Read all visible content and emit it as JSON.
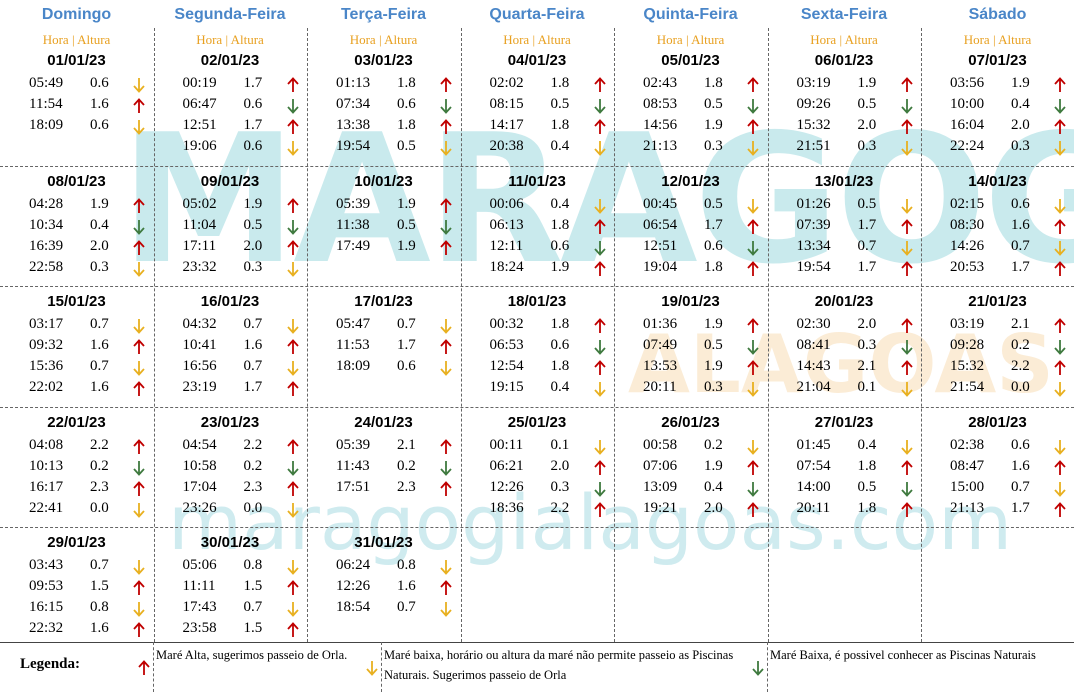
{
  "header": {
    "days": [
      "Domingo",
      "Segunda-Feira",
      "Terça-Feira",
      "Quarta-Feira",
      "Quinta-Feira",
      "Sexta-Feira",
      "Sábado"
    ],
    "subheader": "Hora | Altura"
  },
  "watermark": {
    "logo": "MARAGOGI",
    "region": "ALAGOAS",
    "url": "maragogialagoas.com"
  },
  "weeks": [
    {
      "days": [
        {
          "date": "01/01/23",
          "entries": [
            [
              "05:49",
              "0.6",
              "#e8b020"
            ],
            [
              "11:54",
              "1.6",
              "#c00000"
            ],
            [
              "18:09",
              "0.6",
              "#e8b020"
            ]
          ]
        },
        {
          "date": "02/01/23",
          "entries": [
            [
              "00:19",
              "1.7",
              "#c00000"
            ],
            [
              "06:47",
              "0.6",
              "#3f7a3f"
            ],
            [
              "12:51",
              "1.7",
              "#c00000"
            ],
            [
              "19:06",
              "0.6",
              "#e8b020"
            ]
          ]
        },
        {
          "date": "03/01/23",
          "entries": [
            [
              "01:13",
              "1.8",
              "#c00000"
            ],
            [
              "07:34",
              "0.6",
              "#3f7a3f"
            ],
            [
              "13:38",
              "1.8",
              "#c00000"
            ],
            [
              "19:54",
              "0.5",
              "#e8b020"
            ]
          ]
        },
        {
          "date": "04/01/23",
          "entries": [
            [
              "02:02",
              "1.8",
              "#c00000"
            ],
            [
              "08:15",
              "0.5",
              "#3f7a3f"
            ],
            [
              "14:17",
              "1.8",
              "#c00000"
            ],
            [
              "20:38",
              "0.4",
              "#e8b020"
            ]
          ]
        },
        {
          "date": "05/01/23",
          "entries": [
            [
              "02:43",
              "1.8",
              "#c00000"
            ],
            [
              "08:53",
              "0.5",
              "#3f7a3f"
            ],
            [
              "14:56",
              "1.9",
              "#c00000"
            ],
            [
              "21:13",
              "0.3",
              "#e8b020"
            ]
          ]
        },
        {
          "date": "06/01/23",
          "entries": [
            [
              "03:19",
              "1.9",
              "#c00000"
            ],
            [
              "09:26",
              "0.5",
              "#3f7a3f"
            ],
            [
              "15:32",
              "2.0",
              "#c00000"
            ],
            [
              "21:51",
              "0.3",
              "#e8b020"
            ]
          ]
        },
        {
          "date": "07/01/23",
          "entries": [
            [
              "03:56",
              "1.9",
              "#c00000"
            ],
            [
              "10:00",
              "0.4",
              "#3f7a3f"
            ],
            [
              "16:04",
              "2.0",
              "#c00000"
            ],
            [
              "22:24",
              "0.3",
              "#e8b020"
            ]
          ]
        }
      ]
    },
    {
      "days": [
        {
          "date": "08/01/23",
          "entries": [
            [
              "04:28",
              "1.9",
              "#c00000"
            ],
            [
              "10:34",
              "0.4",
              "#3f7a3f"
            ],
            [
              "16:39",
              "2.0",
              "#c00000"
            ],
            [
              "22:58",
              "0.3",
              "#e8b020"
            ]
          ]
        },
        {
          "date": "09/01/23",
          "entries": [
            [
              "05:02",
              "1.9",
              "#c00000"
            ],
            [
              "11:04",
              "0.5",
              "#3f7a3f"
            ],
            [
              "17:11",
              "2.0",
              "#c00000"
            ],
            [
              "23:32",
              "0.3",
              "#e8b020"
            ]
          ]
        },
        {
          "date": "10/01/23",
          "entries": [
            [
              "05:39",
              "1.9",
              "#c00000"
            ],
            [
              "11:38",
              "0.5",
              "#3f7a3f"
            ],
            [
              "17:49",
              "1.9",
              "#c00000"
            ]
          ]
        },
        {
          "date": "11/01/23",
          "entries": [
            [
              "00:06",
              "0.4",
              "#e8b020"
            ],
            [
              "06:13",
              "1.8",
              "#c00000"
            ],
            [
              "12:11",
              "0.6",
              "#3f7a3f"
            ],
            [
              "18:24",
              "1.9",
              "#c00000"
            ]
          ]
        },
        {
          "date": "12/01/23",
          "entries": [
            [
              "00:45",
              "0.5",
              "#e8b020"
            ],
            [
              "06:54",
              "1.7",
              "#c00000"
            ],
            [
              "12:51",
              "0.6",
              "#3f7a3f"
            ],
            [
              "19:04",
              "1.8",
              "#c00000"
            ]
          ]
        },
        {
          "date": "13/01/23",
          "entries": [
            [
              "01:26",
              "0.5",
              "#e8b020"
            ],
            [
              "07:39",
              "1.7",
              "#c00000"
            ],
            [
              "13:34",
              "0.7",
              "#e8b020"
            ],
            [
              "19:54",
              "1.7",
              "#c00000"
            ]
          ]
        },
        {
          "date": "14/01/23",
          "entries": [
            [
              "02:15",
              "0.6",
              "#e8b020"
            ],
            [
              "08:30",
              "1.6",
              "#c00000"
            ],
            [
              "14:26",
              "0.7",
              "#e8b020"
            ],
            [
              "20:53",
              "1.7",
              "#c00000"
            ]
          ]
        }
      ]
    },
    {
      "days": [
        {
          "date": "15/01/23",
          "entries": [
            [
              "03:17",
              "0.7",
              "#e8b020"
            ],
            [
              "09:32",
              "1.6",
              "#c00000"
            ],
            [
              "15:36",
              "0.7",
              "#e8b020"
            ],
            [
              "22:02",
              "1.6",
              "#c00000"
            ]
          ]
        },
        {
          "date": "16/01/23",
          "entries": [
            [
              "04:32",
              "0.7",
              "#e8b020"
            ],
            [
              "10:41",
              "1.6",
              "#c00000"
            ],
            [
              "16:56",
              "0.7",
              "#e8b020"
            ],
            [
              "23:19",
              "1.7",
              "#c00000"
            ]
          ]
        },
        {
          "date": "17/01/23",
          "entries": [
            [
              "05:47",
              "0.7",
              "#e8b020"
            ],
            [
              "11:53",
              "1.7",
              "#c00000"
            ],
            [
              "18:09",
              "0.6",
              "#e8b020"
            ]
          ]
        },
        {
          "date": "18/01/23",
          "entries": [
            [
              "00:32",
              "1.8",
              "#c00000"
            ],
            [
              "06:53",
              "0.6",
              "#3f7a3f"
            ],
            [
              "12:54",
              "1.8",
              "#c00000"
            ],
            [
              "19:15",
              "0.4",
              "#e8b020"
            ]
          ]
        },
        {
          "date": "19/01/23",
          "entries": [
            [
              "01:36",
              "1.9",
              "#c00000"
            ],
            [
              "07:49",
              "0.5",
              "#3f7a3f"
            ],
            [
              "13:53",
              "1.9",
              "#c00000"
            ],
            [
              "20:11",
              "0.3",
              "#e8b020"
            ]
          ]
        },
        {
          "date": "20/01/23",
          "entries": [
            [
              "02:30",
              "2.0",
              "#c00000"
            ],
            [
              "08:41",
              "0.3",
              "#3f7a3f"
            ],
            [
              "14:43",
              "2.1",
              "#c00000"
            ],
            [
              "21:04",
              "0.1",
              "#e8b020"
            ]
          ]
        },
        {
          "date": "21/01/23",
          "entries": [
            [
              "03:19",
              "2.1",
              "#c00000"
            ],
            [
              "09:28",
              "0.2",
              "#3f7a3f"
            ],
            [
              "15:32",
              "2.2",
              "#c00000"
            ],
            [
              "21:54",
              "0.0",
              "#e8b020"
            ]
          ]
        }
      ]
    },
    {
      "days": [
        {
          "date": "22/01/23",
          "entries": [
            [
              "04:08",
              "2.2",
              "#c00000"
            ],
            [
              "10:13",
              "0.2",
              "#3f7a3f"
            ],
            [
              "16:17",
              "2.3",
              "#c00000"
            ],
            [
              "22:41",
              "0.0",
              "#e8b020"
            ]
          ]
        },
        {
          "date": "23/01/23",
          "entries": [
            [
              "04:54",
              "2.2",
              "#c00000"
            ],
            [
              "10:58",
              "0.2",
              "#3f7a3f"
            ],
            [
              "17:04",
              "2.3",
              "#c00000"
            ],
            [
              "23:26",
              "0.0",
              "#e8b020"
            ]
          ]
        },
        {
          "date": "24/01/23",
          "entries": [
            [
              "05:39",
              "2.1",
              "#c00000"
            ],
            [
              "11:43",
              "0.2",
              "#3f7a3f"
            ],
            [
              "17:51",
              "2.3",
              "#c00000"
            ]
          ]
        },
        {
          "date": "25/01/23",
          "entries": [
            [
              "00:11",
              "0.1",
              "#e8b020"
            ],
            [
              "06:21",
              "2.0",
              "#c00000"
            ],
            [
              "12:26",
              "0.3",
              "#3f7a3f"
            ],
            [
              "18:36",
              "2.2",
              "#c00000"
            ]
          ]
        },
        {
          "date": "26/01/23",
          "entries": [
            [
              "00:58",
              "0.2",
              "#e8b020"
            ],
            [
              "07:06",
              "1.9",
              "#c00000"
            ],
            [
              "13:09",
              "0.4",
              "#3f7a3f"
            ],
            [
              "19:21",
              "2.0",
              "#c00000"
            ]
          ]
        },
        {
          "date": "27/01/23",
          "entries": [
            [
              "01:45",
              "0.4",
              "#e8b020"
            ],
            [
              "07:54",
              "1.8",
              "#c00000"
            ],
            [
              "14:00",
              "0.5",
              "#3f7a3f"
            ],
            [
              "20:11",
              "1.8",
              "#c00000"
            ]
          ]
        },
        {
          "date": "28/01/23",
          "entries": [
            [
              "02:38",
              "0.6",
              "#e8b020"
            ],
            [
              "08:47",
              "1.6",
              "#c00000"
            ],
            [
              "15:00",
              "0.7",
              "#e8b020"
            ],
            [
              "21:13",
              "1.7",
              "#c00000"
            ]
          ]
        }
      ]
    },
    {
      "days": [
        {
          "date": "29/01/23",
          "entries": [
            [
              "03:43",
              "0.7",
              "#e8b020"
            ],
            [
              "09:53",
              "1.5",
              "#c00000"
            ],
            [
              "16:15",
              "0.8",
              "#e8b020"
            ],
            [
              "22:32",
              "1.6",
              "#c00000"
            ]
          ]
        },
        {
          "date": "30/01/23",
          "entries": [
            [
              "05:06",
              "0.8",
              "#e8b020"
            ],
            [
              "11:11",
              "1.5",
              "#c00000"
            ],
            [
              "17:43",
              "0.7",
              "#e8b020"
            ],
            [
              "23:58",
              "1.5",
              "#c00000"
            ]
          ]
        },
        {
          "date": "31/01/23",
          "entries": [
            [
              "06:24",
              "0.8",
              "#e8b020"
            ],
            [
              "12:26",
              "1.6",
              "#c00000"
            ],
            [
              "18:54",
              "0.7",
              "#e8b020"
            ]
          ]
        }
      ]
    }
  ],
  "legend": {
    "title": "Legenda:",
    "items": [
      {
        "text": "Maré Alta, sugerimos passeio de Orla.",
        "color": "#c00000",
        "arrow": "up"
      },
      {
        "text": "Maré baixa, horário ou altura da maré não permite passeio as Piscinas Naturais. Sugerimos passeio de Orla",
        "color": "#e8b020",
        "arrow": "down"
      },
      {
        "text": "Maré Baixa, é possivel conhecer as Piscinas Naturais",
        "color": "#3f7a3f",
        "arrow": "down"
      }
    ]
  }
}
